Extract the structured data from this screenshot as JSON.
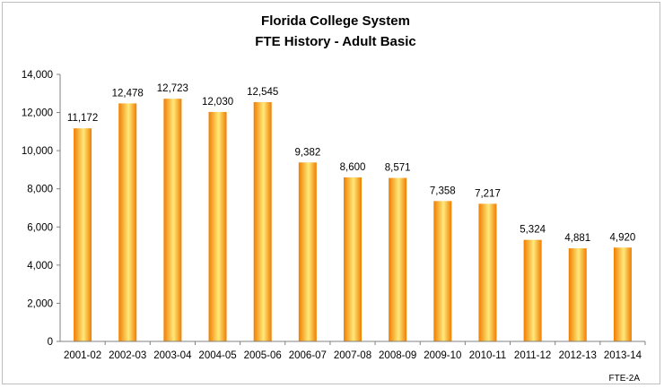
{
  "chart_data": {
    "type": "bar",
    "title": "Florida College System",
    "subtitle": "FTE History - Adult Basic",
    "categories": [
      "2001-02",
      "2002-03",
      "2003-04",
      "2004-05",
      "2005-06",
      "2006-07",
      "2007-08",
      "2008-09",
      "2009-10",
      "2010-11",
      "2011-12",
      "2012-13",
      "2013-14"
    ],
    "values": [
      11172,
      12478,
      12723,
      12030,
      12545,
      9382,
      8600,
      8571,
      7358,
      7217,
      5324,
      4881,
      4920
    ],
    "value_labels": [
      "11,172",
      "12,478",
      "12,723",
      "12,030",
      "12,545",
      "9,382",
      "8,600",
      "8,571",
      "7,358",
      "7,217",
      "5,324",
      "4,881",
      "4,920"
    ],
    "yticks": [
      "0",
      "2,000",
      "4,000",
      "6,000",
      "8,000",
      "10,000",
      "12,000",
      "14,000"
    ],
    "ylim": [
      0,
      14000
    ],
    "grid": false,
    "legend": "none",
    "bar_color_light": "#ffe97a",
    "bar_color_dark": "#f07d00",
    "footnote": "FTE-2A"
  }
}
